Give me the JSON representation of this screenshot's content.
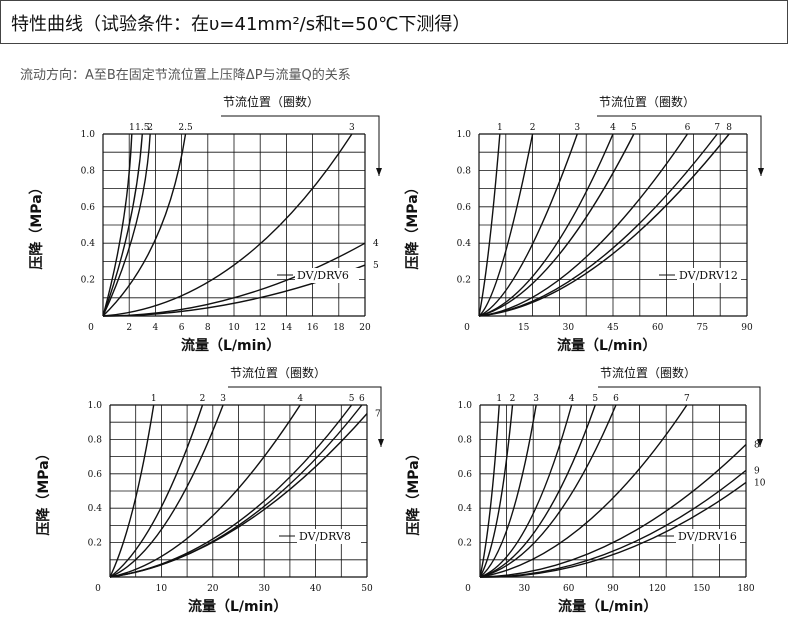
{
  "header": {
    "title": "特性曲线（试验条件：在υ=41mm²/s和t=50℃下测得）"
  },
  "subtitle": "流动方向：A至B在固定节流位置上压降ΔP与流量Q的关系",
  "colors": {
    "ink": "#111111",
    "grid": "#111111"
  },
  "chart_data": [
    {
      "type": "line",
      "model": "DV/DRV6",
      "position_title": "节流位置（圈数）",
      "ylabel": "压降（MPa）",
      "xlabel": "流量（L/min）",
      "xlim": [
        0,
        20
      ],
      "ylim": [
        0,
        1.0
      ],
      "x_ticks": [
        "0",
        "2",
        "4",
        "6",
        "8",
        "10",
        "12",
        "14",
        "16",
        "18",
        "20"
      ],
      "y_ticks": [
        "0.2",
        "0.4",
        "0.6",
        "0.8",
        "1.0"
      ],
      "series": [
        {
          "name": "1",
          "x": [
            0,
            1.5,
            2.2
          ],
          "y": [
            0,
            0.5,
            1.0
          ]
        },
        {
          "name": "1.5",
          "x": [
            0,
            2.0,
            3.0
          ],
          "y": [
            0,
            0.5,
            1.0
          ]
        },
        {
          "name": "2",
          "x": [
            0,
            2.5,
            3.6
          ],
          "y": [
            0,
            0.5,
            1.0
          ]
        },
        {
          "name": "2.5",
          "x": [
            0,
            4.0,
            6.3
          ],
          "y": [
            0,
            0.42,
            1.0
          ]
        },
        {
          "name": "3",
          "x": [
            0,
            10,
            19
          ],
          "y": [
            0,
            0.28,
            1.0
          ]
        },
        {
          "name": "4",
          "x": [
            0,
            10,
            20
          ],
          "y": [
            0,
            0.1,
            0.4
          ]
        },
        {
          "name": "5",
          "x": [
            0,
            10,
            20
          ],
          "y": [
            0,
            0.07,
            0.28
          ]
        }
      ]
    },
    {
      "type": "line",
      "model": "DV/DRV12",
      "position_title": "节流位置（圈数）",
      "ylabel": "压降（MPa）",
      "xlabel": "流量（L/min）",
      "xlim": [
        0,
        90
      ],
      "ylim": [
        0,
        1.0
      ],
      "x_ticks": [
        "0",
        "15",
        "30",
        "45",
        "60",
        "75",
        "90"
      ],
      "y_ticks": [
        "0.2",
        "0.4",
        "0.6",
        "0.8",
        "1.0"
      ],
      "series": [
        {
          "name": "1",
          "x": [
            0,
            3.5,
            7.0
          ],
          "y": [
            0,
            0.4,
            1.0
          ]
        },
        {
          "name": "2",
          "x": [
            0,
            8,
            18
          ],
          "y": [
            0,
            0.3,
            1.0
          ]
        },
        {
          "name": "3",
          "x": [
            0,
            15,
            33
          ],
          "y": [
            0,
            0.3,
            1.0
          ]
        },
        {
          "name": "4",
          "x": [
            0,
            22,
            45
          ],
          "y": [
            0,
            0.3,
            1.0
          ]
        },
        {
          "name": "5",
          "x": [
            0,
            25,
            52
          ],
          "y": [
            0,
            0.3,
            1.0
          ]
        },
        {
          "name": "6",
          "x": [
            0,
            33,
            70
          ],
          "y": [
            0,
            0.28,
            1.0
          ]
        },
        {
          "name": "7",
          "x": [
            0,
            38,
            80
          ],
          "y": [
            0,
            0.28,
            1.0
          ]
        },
        {
          "name": "8",
          "x": [
            0,
            40,
            84
          ],
          "y": [
            0,
            0.28,
            1.0
          ]
        }
      ]
    },
    {
      "type": "line",
      "model": "DV/DRV8",
      "position_title": "节流位置（圈数）",
      "ylabel": "压降（MPa）",
      "xlabel": "流量（L/min）",
      "xlim": [
        0,
        50
      ],
      "ylim": [
        0,
        1.0
      ],
      "x_ticks": [
        "0",
        "10",
        "20",
        "30",
        "40",
        "50"
      ],
      "y_ticks": [
        "0.2",
        "0.4",
        "0.6",
        "0.8",
        "1.0"
      ],
      "series": [
        {
          "name": "1",
          "x": [
            0,
            4.5,
            8.5
          ],
          "y": [
            0,
            0.4,
            1.0
          ]
        },
        {
          "name": "2",
          "x": [
            0,
            9,
            18
          ],
          "y": [
            0,
            0.35,
            1.0
          ]
        },
        {
          "name": "3",
          "x": [
            0,
            11,
            22
          ],
          "y": [
            0,
            0.32,
            1.0
          ]
        },
        {
          "name": "4",
          "x": [
            0,
            18,
            37
          ],
          "y": [
            0,
            0.3,
            1.0
          ]
        },
        {
          "name": "5",
          "x": [
            0,
            24,
            47
          ],
          "y": [
            0,
            0.3,
            1.0
          ]
        },
        {
          "name": "6",
          "x": [
            0,
            25,
            49
          ],
          "y": [
            0,
            0.3,
            1.0
          ]
        },
        {
          "name": "7",
          "x": [
            0,
            25,
            50
          ],
          "y": [
            0,
            0.29,
            0.95
          ]
        }
      ]
    },
    {
      "type": "line",
      "model": "DV/DRV16",
      "position_title": "节流位置（圈数）",
      "ylabel": "压降（MPa）",
      "xlabel": "流量（L/min）",
      "xlim": [
        0,
        180
      ],
      "ylim": [
        0,
        1.0
      ],
      "x_ticks": [
        "0",
        "30",
        "60",
        "90",
        "120",
        "150",
        "180"
      ],
      "y_ticks": [
        "0.2",
        "0.4",
        "0.6",
        "0.8",
        "1.0"
      ],
      "series": [
        {
          "name": "1",
          "x": [
            0,
            7,
            13
          ],
          "y": [
            0,
            0.4,
            1.0
          ]
        },
        {
          "name": "2",
          "x": [
            0,
            12,
            22
          ],
          "y": [
            0,
            0.35,
            1.0
          ]
        },
        {
          "name": "3",
          "x": [
            0,
            20,
            38
          ],
          "y": [
            0,
            0.32,
            1.0
          ]
        },
        {
          "name": "4",
          "x": [
            0,
            32,
            62
          ],
          "y": [
            0,
            0.3,
            1.0
          ]
        },
        {
          "name": "5",
          "x": [
            0,
            40,
            78
          ],
          "y": [
            0,
            0.3,
            1.0
          ]
        },
        {
          "name": "6",
          "x": [
            0,
            47,
            92
          ],
          "y": [
            0,
            0.3,
            1.0
          ]
        },
        {
          "name": "7",
          "x": [
            0,
            70,
            140
          ],
          "y": [
            0,
            0.3,
            1.0
          ]
        },
        {
          "name": "8",
          "x": [
            0,
            90,
            180
          ],
          "y": [
            0,
            0.2,
            0.77
          ]
        },
        {
          "name": "9",
          "x": [
            0,
            90,
            180
          ],
          "y": [
            0,
            0.15,
            0.62
          ]
        },
        {
          "name": "10",
          "x": [
            0,
            90,
            180
          ],
          "y": [
            0,
            0.13,
            0.55
          ]
        }
      ]
    }
  ]
}
